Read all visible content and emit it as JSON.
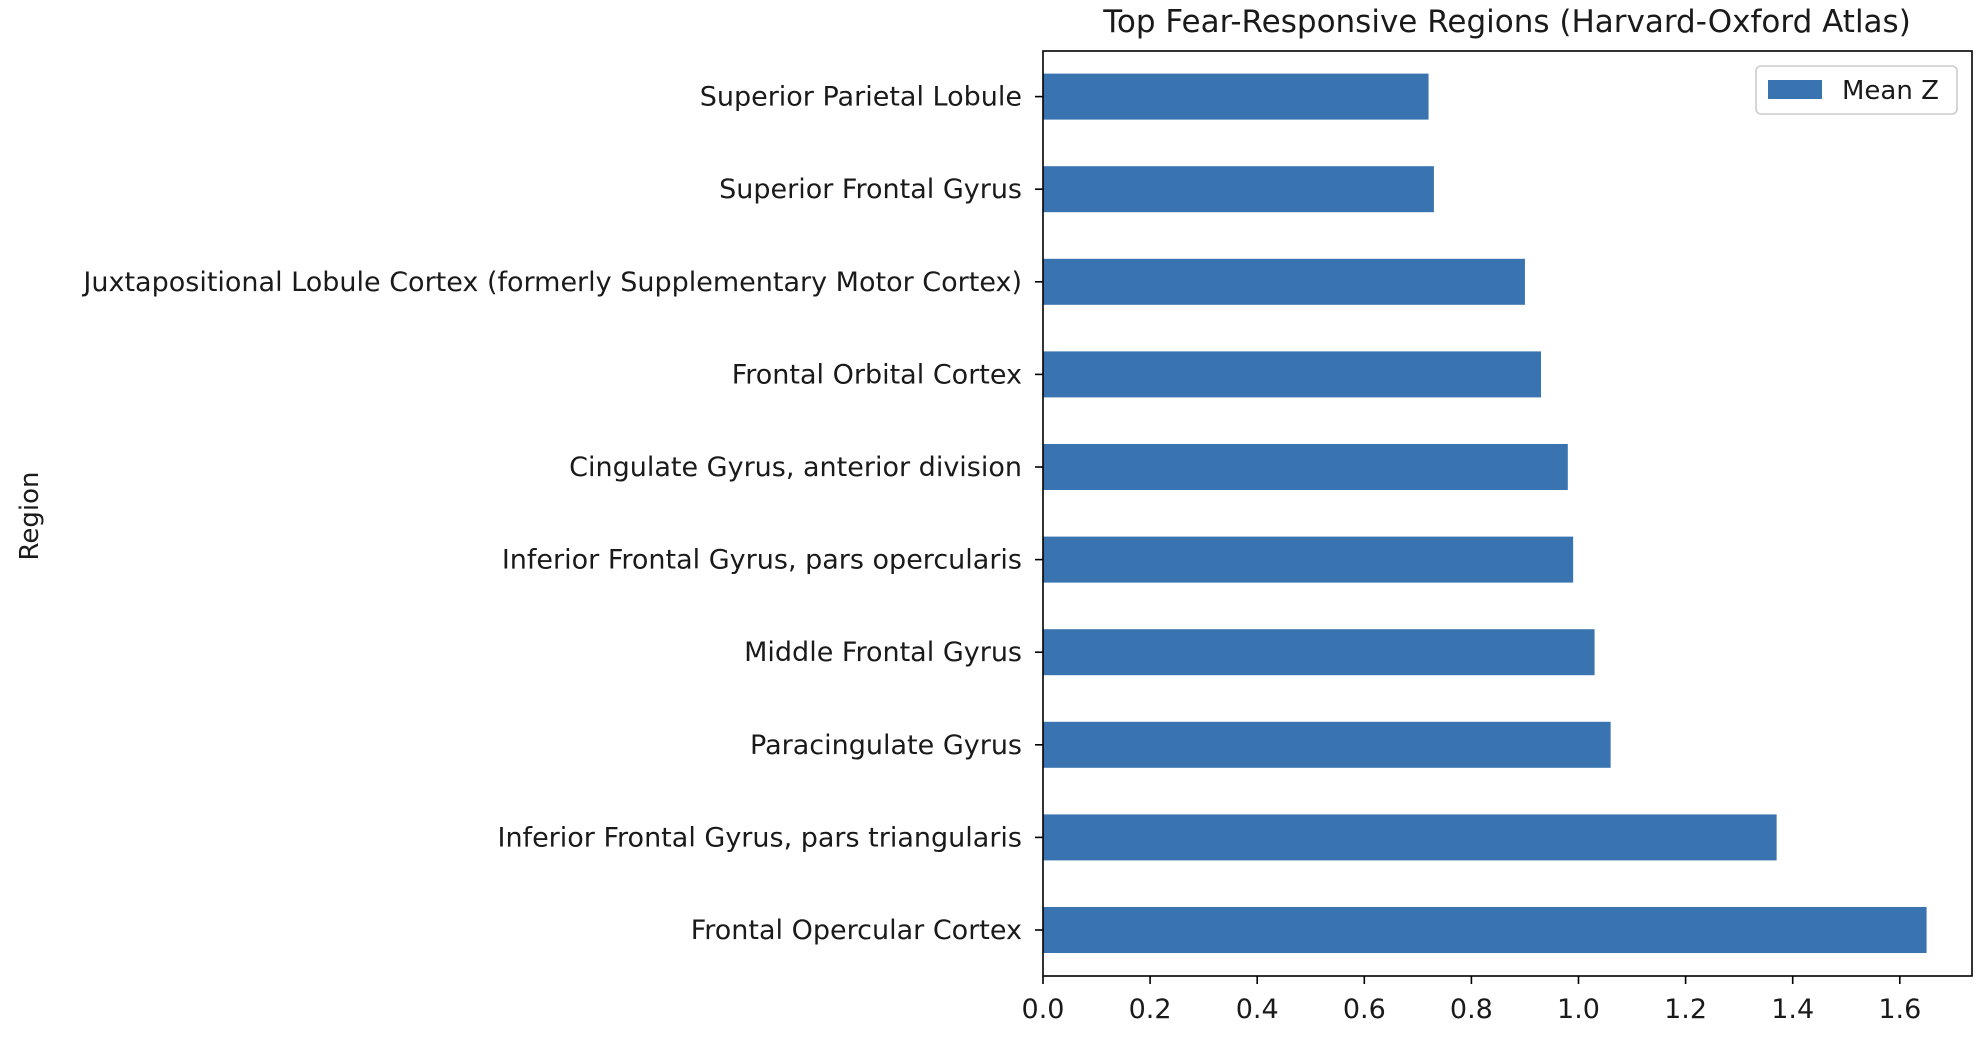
{
  "chart_data": {
    "type": "bar",
    "orientation": "horizontal",
    "title": "Top Fear-Responsive Regions (Harvard-Oxford Atlas)",
    "xlabel": "",
    "ylabel": "Region",
    "xlim": [
      0,
      1.74
    ],
    "xticks": [
      "0.0",
      "0.2",
      "0.4",
      "0.6",
      "0.8",
      "1.0",
      "1.2",
      "1.4",
      "1.6"
    ],
    "xtick_values": [
      0,
      0.2,
      0.4,
      0.6,
      0.8,
      1.0,
      1.2,
      1.4,
      1.6
    ],
    "categories": [
      "Frontal Opercular Cortex",
      "Inferior Frontal Gyrus, pars triangularis",
      "Paracingulate Gyrus",
      "Middle Frontal Gyrus",
      "Inferior Frontal Gyrus, pars opercularis",
      "Cingulate Gyrus, anterior division",
      "Frontal Orbital Cortex",
      "Juxtapositional Lobule Cortex (formerly Supplementary Motor Cortex)",
      "Superior Frontal Gyrus",
      "Superior Parietal Lobule"
    ],
    "series": [
      {
        "name": "Mean Z",
        "color": "#3a74b0",
        "values": [
          1.65,
          1.37,
          1.06,
          1.03,
          0.99,
          0.98,
          0.93,
          0.9,
          0.73,
          0.72
        ]
      }
    ],
    "legend": {
      "position": "top-right",
      "labels": [
        "Mean Z"
      ]
    },
    "grid": false
  }
}
